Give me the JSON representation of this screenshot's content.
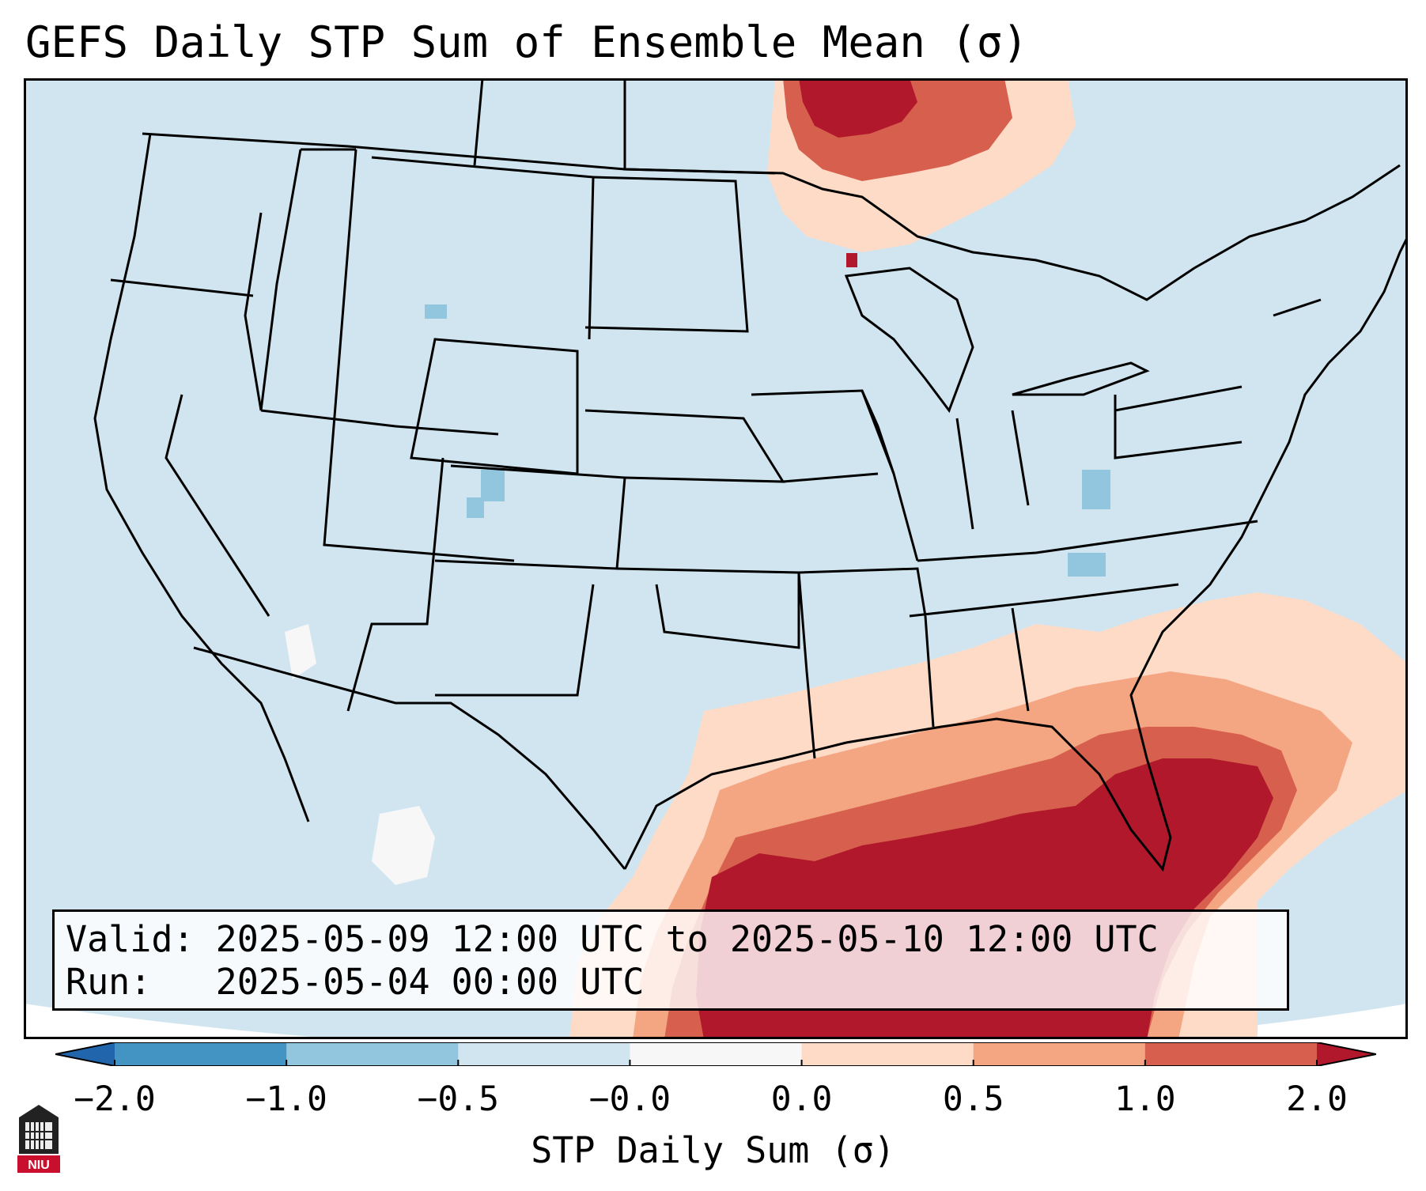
{
  "title": "GEFS Daily STP Sum of Ensemble Mean (σ)",
  "info": {
    "valid": "Valid: 2025-05-09 12:00 UTC to 2025-05-10 12:00 UTC",
    "run": "Run:   2025-05-04 00:00 UTC"
  },
  "colorbar": {
    "label": "STP Daily Sum (σ)",
    "tick_labels": [
      "−2.0",
      "−1.0",
      "−0.5",
      "−0.0",
      "0.0",
      "0.5",
      "1.0",
      "2.0"
    ],
    "bins": [
      {
        "from": -2.0,
        "to": -1.0,
        "color": "#4393c3"
      },
      {
        "from": -1.0,
        "to": -0.5,
        "color": "#92c5de"
      },
      {
        "from": -0.5,
        "to": -0.0,
        "color": "#d1e5f0"
      },
      {
        "from": -0.0,
        "to": 0.0,
        "color": "#f7f7f7"
      },
      {
        "from": 0.0,
        "to": 0.5,
        "color": "#fddbc7"
      },
      {
        "from": 0.5,
        "to": 1.0,
        "color": "#f4a582"
      },
      {
        "from": 1.0,
        "to": 2.0,
        "color": "#d6604d"
      }
    ],
    "under_color": "#2166ac",
    "over_color": "#b2182b"
  },
  "map": {
    "background_color": "#d1e5f0",
    "high_color": "#b2182b",
    "mid_color": "#d6604d",
    "low_color": "#f4a582",
    "faint_color": "#fddbc7",
    "neg_color": "#92c5de",
    "neutral_color": "#f7f7f7"
  },
  "logo": {
    "text": "NIU"
  }
}
